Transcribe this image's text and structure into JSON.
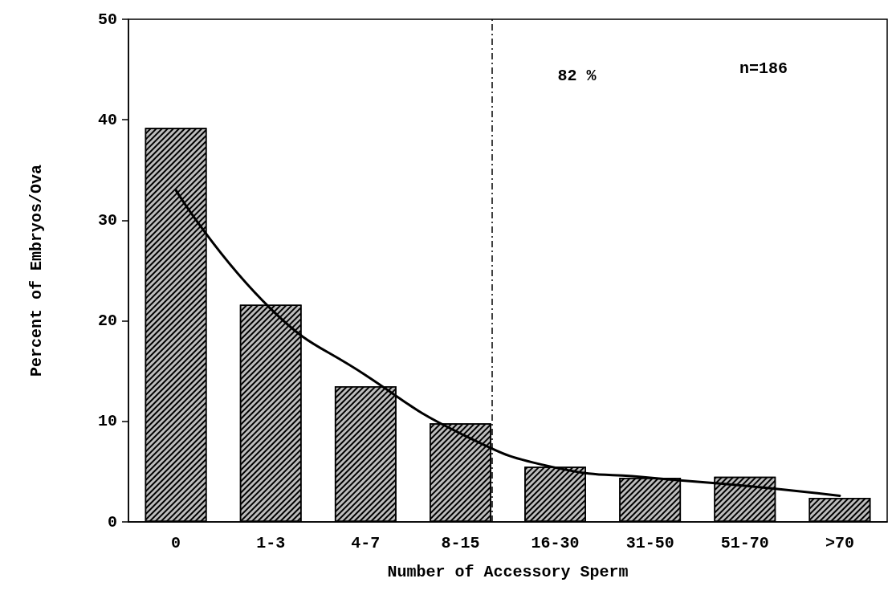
{
  "chart_data": {
    "type": "bar",
    "xlabel": "Number of Accessory Sperm",
    "ylabel": "Percent of Embryos/Ova",
    "categories": [
      "0",
      "1-3",
      "4-7",
      "8-15",
      "16-30",
      "31-50",
      "51-70",
      ">70"
    ],
    "series": [
      {
        "color": "#bdbdbd",
        "values": [
          39.2,
          21.6,
          13.5,
          9.8,
          5.5,
          4.4,
          4.5,
          2.4
        ]
      },
      {
        "type": "line",
        "color": "#000000",
        "values": [
          33.0,
          21.2,
          14.6,
          8.8,
          5.4,
          4.4,
          3.6,
          2.6
        ]
      }
    ],
    "ylim": [
      0,
      50
    ],
    "yticks": [
      0,
      10,
      20,
      30,
      40,
      50
    ],
    "grid": false,
    "marker": "none",
    "line_style": "solid",
    "ref_lines": [
      {
        "axis": "x",
        "value": "8-15",
        "label": "82 %",
        "line_style": "dashed",
        "color": "#000000"
      }
    ],
    "annotations": [
      "n=186"
    ]
  }
}
